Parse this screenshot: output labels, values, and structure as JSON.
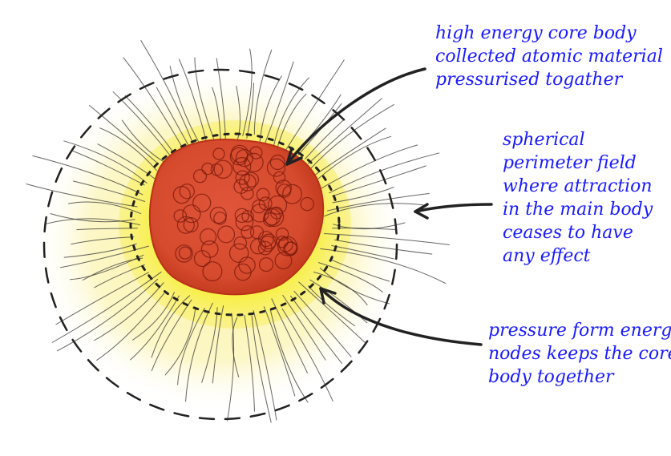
{
  "colors": {
    "text": "#1a1aff",
    "core": "#d8482c",
    "core_dark": "#b92d18",
    "glow": "#f7ee2c",
    "glow_pale": "#fbf6b4",
    "ink": "#222222"
  },
  "labels": {
    "core": {
      "lines": [
        "high energy core body",
        "collected atomic material",
        "pressurised togather"
      ]
    },
    "perimeter": {
      "lines": [
        "spherical",
        "perimeter field",
        "where  attraction",
        "in the main body",
        "ceases to have",
        "any effect"
      ]
    },
    "pressure": {
      "lines": [
        "pressure form energy",
        "nodes keeps the core",
        "body together"
      ]
    }
  }
}
